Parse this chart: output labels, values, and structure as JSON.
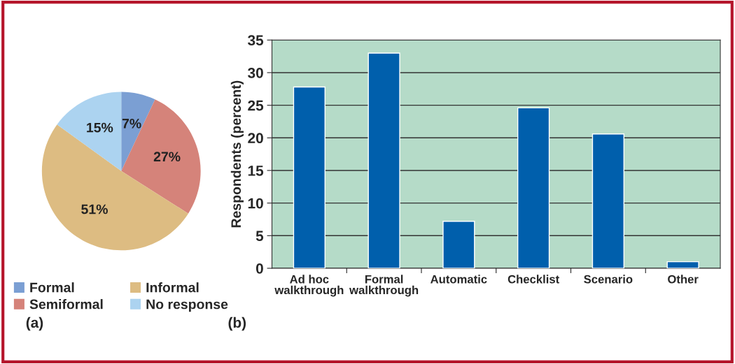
{
  "chart_data": [
    {
      "type": "pie",
      "categories": [
        "Formal",
        "Semiformal",
        "Informal",
        "No response"
      ],
      "values": [
        7,
        27,
        51,
        15
      ],
      "colors": [
        "#7b9fd3",
        "#d5837a",
        "#ddbc82",
        "#acd3f0"
      ],
      "value_labels": [
        "7%",
        "27%",
        "51%",
        "15%"
      ],
      "legend": "bottom",
      "annotations": [
        "(a)"
      ]
    },
    {
      "type": "bar",
      "categories": [
        "Ad hoc\nwalkthrough",
        "Formal\nwalkthrough",
        "Automatic",
        "Checklist",
        "Scenario",
        "Other"
      ],
      "values": [
        27.8,
        33.0,
        7.2,
        24.6,
        20.6,
        1.0
      ],
      "color": "#005fac",
      "ylabel": "Respondents (percent)",
      "ylim": [
        0,
        35
      ],
      "yticks": [
        0,
        5,
        10,
        15,
        20,
        25,
        30,
        35
      ],
      "grid": "y",
      "annotations": [
        "(b)"
      ]
    }
  ]
}
